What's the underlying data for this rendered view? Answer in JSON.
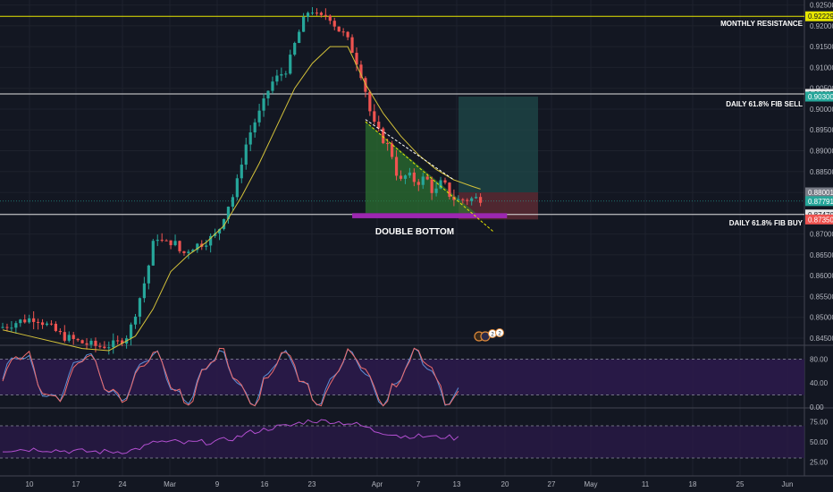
{
  "colors": {
    "background": "#131722",
    "grid": "#1e222d",
    "bull": "#26a69a",
    "bear": "#ef5350",
    "ma": "#d4c23a",
    "fib_line": "#e0e0e0",
    "resistance": "#e6e600",
    "triangle_fill": "#2e7d32",
    "purple_zone": "#9c27b0",
    "target_zone": "#1f4a4a",
    "stop_zone": "#5a2a33",
    "osc_band": "#2b1a4a",
    "osc_line1": "#5c8fd6",
    "osc_line2": "#ef6c6c",
    "osc2_line": "#b24fd0"
  },
  "annotations": {
    "monthly_resistance": "MONTHLY RESISTANCE",
    "fib_sell": "DAILY 61.8% FIB SELL",
    "fib_buy": "DAILY 61.8% FIB BUY",
    "double_bottom": "DOUBLE BOTTOM"
  },
  "event_badges": [
    "2",
    "2"
  ],
  "chart_data": [
    {
      "type": "candlestick",
      "price_axis": {
        "ticks": [
          "0.92500",
          "0.92000",
          "0.91500",
          "0.91000",
          "0.90500",
          "0.90000",
          "0.89500",
          "0.89000",
          "0.88500",
          "0.88000",
          "0.87500",
          "0.87000",
          "0.86500",
          "0.86000",
          "0.85500",
          "0.85000",
          "0.84500"
        ],
        "range": [
          0.8435,
          0.9262
        ]
      },
      "x_axis": {
        "ticks": [
          "10",
          "17",
          "24",
          "Mar",
          "9",
          "16",
          "23",
          "Apr",
          "7",
          "13",
          "20",
          "27",
          "May",
          "11",
          "18",
          "25",
          "Jun"
        ]
      },
      "price_tags": [
        {
          "value": "0.92229",
          "bg": "#e6e600",
          "fg": "#131722"
        },
        {
          "value": "0.90365",
          "bg": "#e8e8e8",
          "fg": "#131722"
        },
        {
          "value": "0.90300",
          "bg": "#26a69a",
          "fg": "#ffffff"
        },
        {
          "value": "0.88001",
          "bg": "#787b86",
          "fg": "#ffffff"
        },
        {
          "value": "0.87791",
          "bg": "#26a69a",
          "fg": "#ffffff"
        },
        {
          "value": "0.87470",
          "bg": "#e8e8e8",
          "fg": "#131722"
        },
        {
          "value": "0.87350",
          "bg": "#ef5350",
          "fg": "#ffffff"
        }
      ],
      "levels": {
        "monthly_resistance": 0.92229,
        "fib_sell": 0.90365,
        "fib_buy": 0.8747,
        "target": 0.903,
        "entry": 0.88001,
        "last": 0.87791,
        "stop": 0.8735
      },
      "price_path": [
        [
          0,
          0.8475
        ],
        [
          4,
          0.849
        ],
        [
          8,
          0.85
        ],
        [
          12,
          0.847
        ],
        [
          14,
          0.8455
        ],
        [
          18,
          0.844
        ],
        [
          22,
          0.843
        ],
        [
          26,
          0.8435
        ],
        [
          29,
          0.846
        ],
        [
          33,
          0.86
        ],
        [
          35,
          0.87
        ],
        [
          37,
          0.8675
        ],
        [
          39,
          0.8685
        ],
        [
          41,
          0.865
        ],
        [
          43,
          0.8668
        ],
        [
          46,
          0.868
        ],
        [
          49,
          0.87
        ],
        [
          51,
          0.876
        ],
        [
          53,
          0.88
        ],
        [
          55,
          0.89
        ],
        [
          57,
          0.896
        ],
        [
          59,
          0.9
        ],
        [
          61,
          0.906
        ],
        [
          63,
          0.908
        ],
        [
          65,
          0.91
        ],
        [
          66,
          0.914
        ],
        [
          68,
          0.92
        ],
        [
          70,
          0.9245
        ],
        [
          72,
          0.9215
        ],
        [
          74,
          0.923
        ],
        [
          76,
          0.9195
        ],
        [
          78,
          0.9175
        ],
        [
          80,
          0.913
        ],
        [
          82,
          0.907
        ],
        [
          84,
          0.897
        ],
        [
          86,
          0.8935
        ],
        [
          88,
          0.8905
        ],
        [
          89,
          0.8875
        ],
        [
          90,
          0.882
        ],
        [
          92,
          0.8845
        ],
        [
          93,
          0.883
        ],
        [
          95,
          0.8825
        ],
        [
          96,
          0.884
        ],
        [
          98,
          0.8795
        ],
        [
          100,
          0.883
        ],
        [
          101,
          0.88
        ],
        [
          103,
          0.878
        ],
        [
          104,
          0.8782
        ],
        [
          106,
          0.8784
        ],
        [
          108,
          0.8786
        ]
      ],
      "ma_path": [
        [
          0,
          0.847
        ],
        [
          6,
          0.8455
        ],
        [
          12,
          0.844
        ],
        [
          18,
          0.8425
        ],
        [
          24,
          0.842
        ],
        [
          30,
          0.8455
        ],
        [
          34,
          0.852
        ],
        [
          38,
          0.861
        ],
        [
          42,
          0.865
        ],
        [
          46,
          0.868
        ],
        [
          50,
          0.872
        ],
        [
          54,
          0.879
        ],
        [
          58,
          0.887
        ],
        [
          62,
          0.896
        ],
        [
          66,
          0.905
        ],
        [
          70,
          0.911
        ],
        [
          74,
          0.915
        ],
        [
          78,
          0.915
        ],
        [
          82,
          0.906
        ],
        [
          86,
          0.899
        ],
        [
          90,
          0.8935
        ],
        [
          94,
          0.889
        ],
        [
          98,
          0.8855
        ],
        [
          102,
          0.883
        ],
        [
          106,
          0.8815
        ],
        [
          108,
          0.8808
        ]
      ]
    },
    {
      "type": "line",
      "name": "oscillator-1",
      "y_ticks": [
        "80.00",
        "40.00",
        "0.00"
      ],
      "range": [
        0,
        100
      ],
      "band": [
        20,
        80
      ]
    },
    {
      "type": "line",
      "name": "oscillator-2",
      "y_ticks": [
        "75.00",
        "50.00",
        "25.00"
      ],
      "range": [
        10,
        90
      ],
      "band": [
        30,
        70
      ]
    }
  ]
}
